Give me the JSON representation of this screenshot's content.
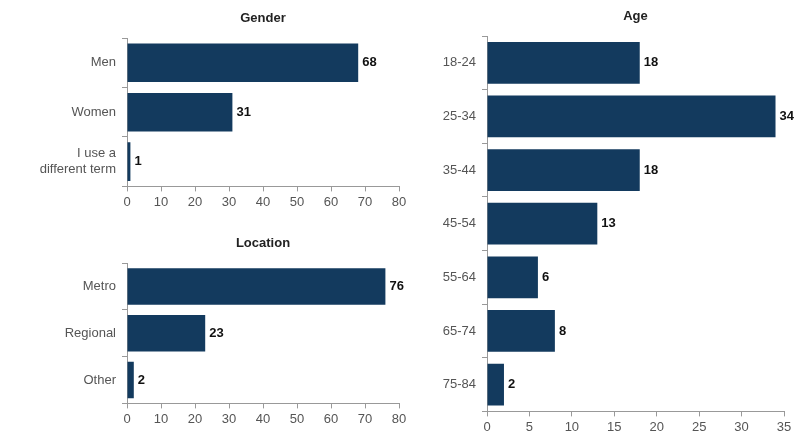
{
  "chart_data": [
    {
      "type": "bar",
      "title": "Gender",
      "orientation": "horizontal",
      "categories": [
        "Men",
        "Women",
        "I use a different term"
      ],
      "values": [
        68,
        31,
        1
      ],
      "color": "#133a5e",
      "xlim": [
        0,
        80
      ],
      "xticks": [
        0,
        10,
        20,
        30,
        40,
        50,
        60,
        70,
        80
      ],
      "grid": false,
      "data_labels": true
    },
    {
      "type": "bar",
      "title": "Location",
      "orientation": "horizontal",
      "categories": [
        "Metro",
        "Regional",
        "Other"
      ],
      "values": [
        76,
        23,
        2
      ],
      "color": "#133a5e",
      "xlim": [
        0,
        80
      ],
      "xticks": [
        0,
        10,
        20,
        30,
        40,
        50,
        60,
        70,
        80
      ],
      "grid": false,
      "data_labels": true
    },
    {
      "type": "bar",
      "title": "Age",
      "orientation": "horizontal",
      "categories": [
        "18-24",
        "25-34",
        "35-44",
        "45-54",
        "55-64",
        "65-74",
        "75-84"
      ],
      "values": [
        18,
        34,
        18,
        13,
        6,
        8,
        2
      ],
      "color": "#133a5e",
      "xlim": [
        0,
        35
      ],
      "xticks": [
        0,
        5,
        10,
        15,
        20,
        25,
        30,
        35
      ],
      "grid": false,
      "data_labels": true
    }
  ]
}
